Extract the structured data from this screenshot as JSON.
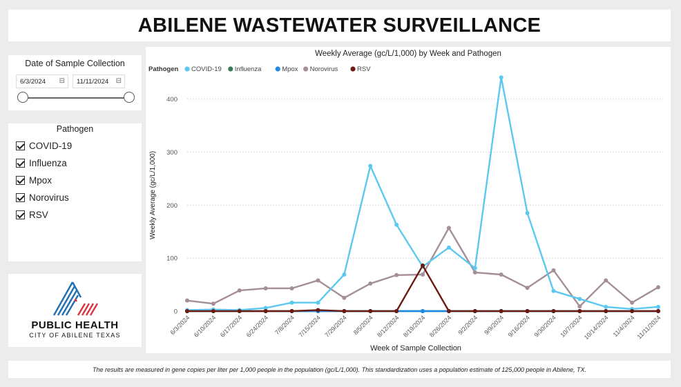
{
  "title": "ABILENE WASTEWATER SURVEILLANCE",
  "date_filter": {
    "heading": "Date of Sample Collection",
    "start": "6/3/2024",
    "end": "11/11/2024"
  },
  "pathogen_filter": {
    "heading": "Pathogen",
    "items": [
      "COVID-19",
      "Influenza",
      "Mpox",
      "Norovirus",
      "RSV"
    ]
  },
  "logo": {
    "line1": "PUBLIC HEALTH",
    "line2": "CITY OF ABILENE TEXAS"
  },
  "footer": "The results are measured in gene copies per liter per 1,000 people in the population (gc/L/1,000). This standardization uses a population estimate of 125,000 people in Abilene, TX.",
  "colors": {
    "covid": "#5bc8f0",
    "influenza": "#3d7a5a",
    "mpox": "#1e88e5",
    "norovirus": "#a38e99",
    "rsv": "#6b1a10"
  },
  "chart_data": {
    "type": "line",
    "title": "Weekly Average (gc/L/1,000) by Week and Pathogen",
    "xlabel": "Week of Sample Collection",
    "ylabel": "Weekly Average (gc/L/1,000)",
    "legend_title": "Pathogen",
    "legend_position": "top-left",
    "ylim": [
      0,
      440
    ],
    "yticks": [
      0,
      100,
      200,
      300,
      400
    ],
    "grid": true,
    "categories": [
      "6/3/2024",
      "6/10/2024",
      "6/17/2024",
      "6/24/2024",
      "7/8/2024",
      "7/15/2024",
      "7/29/2024",
      "8/5/2024",
      "8/12/2024",
      "8/19/2024",
      "8/26/2024",
      "9/2/2024",
      "9/9/2024",
      "9/16/2024",
      "9/30/2024",
      "10/7/2024",
      "10/14/2024",
      "11/4/2024",
      "11/11/2024"
    ],
    "x_positions": [
      0,
      1,
      2,
      3,
      4,
      5,
      6,
      7,
      8,
      9,
      10,
      11,
      12,
      13,
      14,
      15,
      16,
      17,
      18
    ],
    "series": [
      {
        "name": "COVID-19",
        "color": "#5bc8f0",
        "values": [
          2,
          3,
          2,
          6,
          16,
          16,
          69,
          274,
          163,
          84,
          120,
          81,
          441,
          185,
          38,
          23,
          8,
          4,
          8
        ]
      },
      {
        "name": "Influenza",
        "color": "#3d7a5a",
        "values": [
          0,
          0,
          0,
          0,
          0,
          0,
          0,
          0,
          0,
          0,
          0,
          0,
          0,
          0,
          0,
          0,
          0,
          0,
          0
        ]
      },
      {
        "name": "Mpox",
        "color": "#1e88e5",
        "values": [
          0,
          0,
          0,
          0,
          0,
          0,
          0,
          0,
          0,
          0,
          0,
          0,
          0,
          0,
          0,
          0,
          0,
          0,
          0
        ]
      },
      {
        "name": "Norovirus",
        "color": "#a38e99",
        "values": [
          20,
          14,
          39,
          43,
          43,
          58,
          25,
          52,
          68,
          69,
          157,
          73,
          69,
          44,
          77,
          9,
          58,
          16,
          45
        ]
      },
      {
        "name": "RSV",
        "color": "#6b1a10",
        "values": [
          0,
          0,
          0,
          0,
          0,
          2,
          0,
          0,
          0,
          86,
          0,
          0,
          0,
          0,
          0,
          0,
          0,
          0,
          0
        ]
      }
    ]
  }
}
